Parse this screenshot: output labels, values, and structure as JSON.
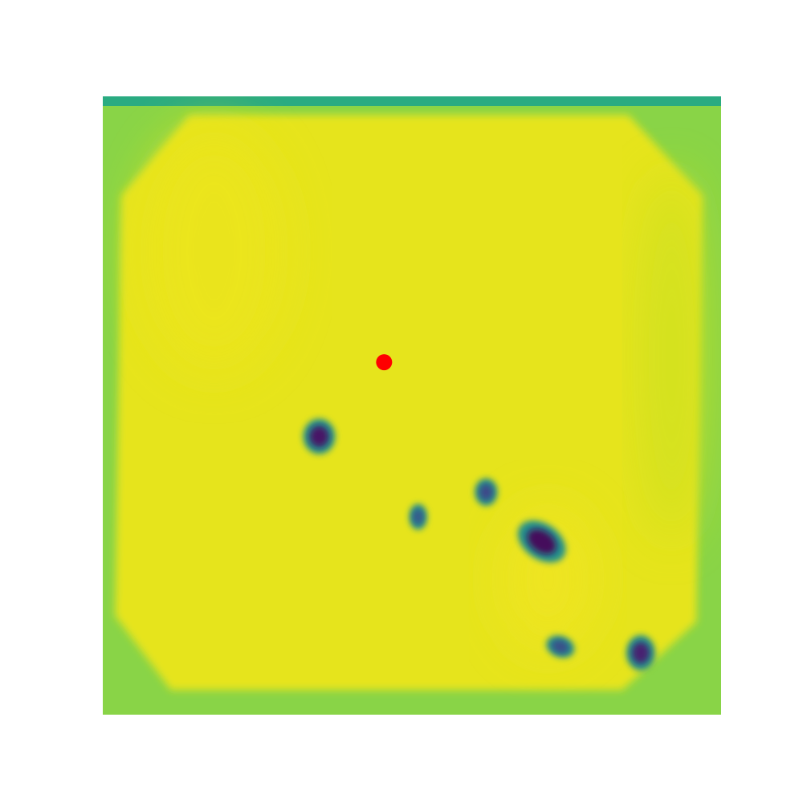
{
  "chart_data": {
    "type": "heatmap",
    "colormap": "viridis",
    "value_range": [
      0,
      1
    ],
    "background_value": 0.74,
    "top_edge_value": 0.55,
    "interior_value": 0.93,
    "regions": [
      {
        "name": "interior-upper-left",
        "value": 0.95
      },
      {
        "name": "interior-lower-right",
        "value": 0.96
      },
      {
        "name": "interior-right-band",
        "value": 0.86
      }
    ],
    "blobs": [
      {
        "name": "blob-1",
        "x": 0.35,
        "y": 0.55,
        "value": 0.05
      },
      {
        "name": "blob-2",
        "x": 0.62,
        "y": 0.64,
        "value": 0.2
      },
      {
        "name": "blob-3",
        "x": 0.51,
        "y": 0.68,
        "value": 0.25
      },
      {
        "name": "blob-4",
        "x": 0.71,
        "y": 0.72,
        "value": 0.02
      },
      {
        "name": "blob-5",
        "x": 0.74,
        "y": 0.89,
        "value": 0.22
      },
      {
        "name": "blob-6",
        "x": 0.87,
        "y": 0.9,
        "value": 0.08
      }
    ],
    "marker": {
      "x": 0.455,
      "y": 0.43,
      "color": "#ff0000"
    },
    "xlabel": "",
    "ylabel": "",
    "title": "",
    "axes_visible": false,
    "grid": false,
    "legend": "none"
  }
}
